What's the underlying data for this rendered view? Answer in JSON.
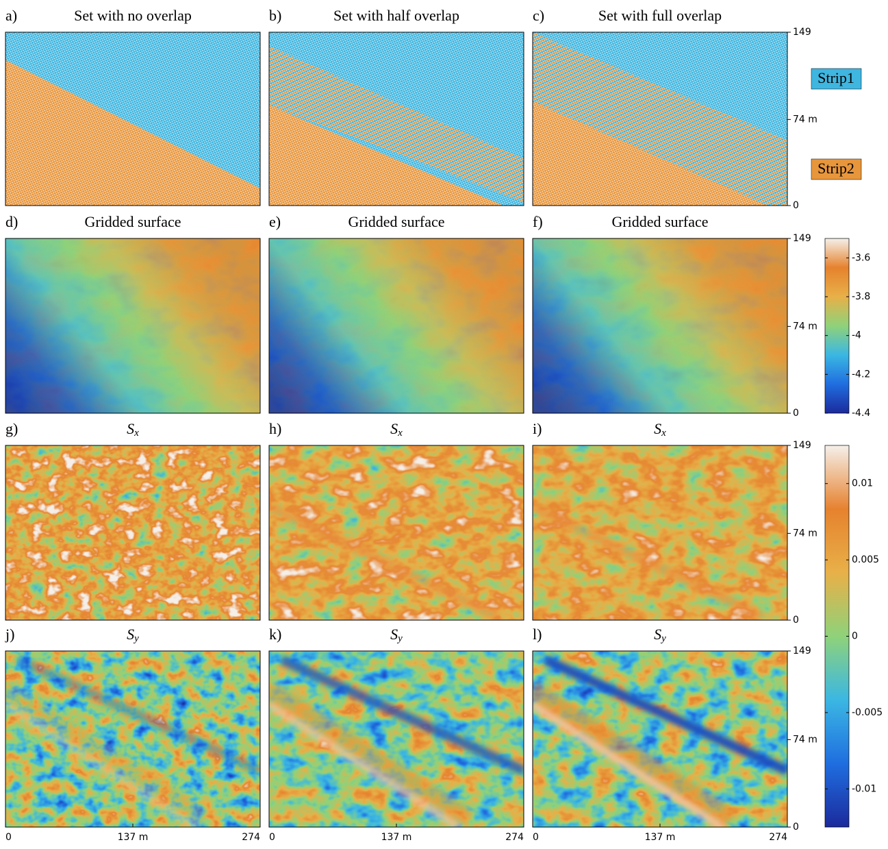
{
  "panels": [
    {
      "label": "a)",
      "title": "Set with no overlap"
    },
    {
      "label": "b)",
      "title": "Set with half overlap"
    },
    {
      "label": "c)",
      "title": "Set with full overlap"
    },
    {
      "label": "d)",
      "title": "Gridded surface"
    },
    {
      "label": "e)",
      "title": "Gridded surface"
    },
    {
      "label": "f)",
      "title": "Gridded surface"
    },
    {
      "label": "g)",
      "title": "S",
      "title_sub": "x"
    },
    {
      "label": "h)",
      "title": "S",
      "title_sub": "x"
    },
    {
      "label": "i)",
      "title": "S",
      "title_sub": "x"
    },
    {
      "label": "j)",
      "title": "S",
      "title_sub": "y"
    },
    {
      "label": "k)",
      "title": "S",
      "title_sub": "y"
    },
    {
      "label": "l)",
      "title": "S",
      "title_sub": "y"
    }
  ],
  "yaxis": {
    "ylim": [
      0,
      149
    ],
    "yticks": [
      0,
      {
        "value": 74,
        "label": "74 m"
      },
      149
    ]
  },
  "xaxis": {
    "xlim": [
      0,
      274
    ],
    "xticks": [
      0,
      {
        "value": 137,
        "label": "137 m"
      },
      274
    ]
  },
  "legend": [
    {
      "name": "Strip1",
      "color": "#3fb6e0"
    },
    {
      "name": "Strip2",
      "color": "#e8963c"
    }
  ],
  "colorbars": [
    {
      "clim": [
        -4.4,
        -3.5
      ],
      "ticks": [
        -3.6,
        -3.8,
        -4,
        -4.2,
        -4.4
      ]
    },
    {
      "clim": [
        -0.0125,
        0.0125
      ],
      "ticks": [
        0.01,
        0.005,
        0,
        -0.005,
        -0.01
      ]
    }
  ],
  "colormap": [
    "#1c2a9c",
    "#1f6ee0",
    "#3bb7e3",
    "#8fd27a",
    "#e8b048",
    "#e6822e",
    "#f5f0ea"
  ]
}
